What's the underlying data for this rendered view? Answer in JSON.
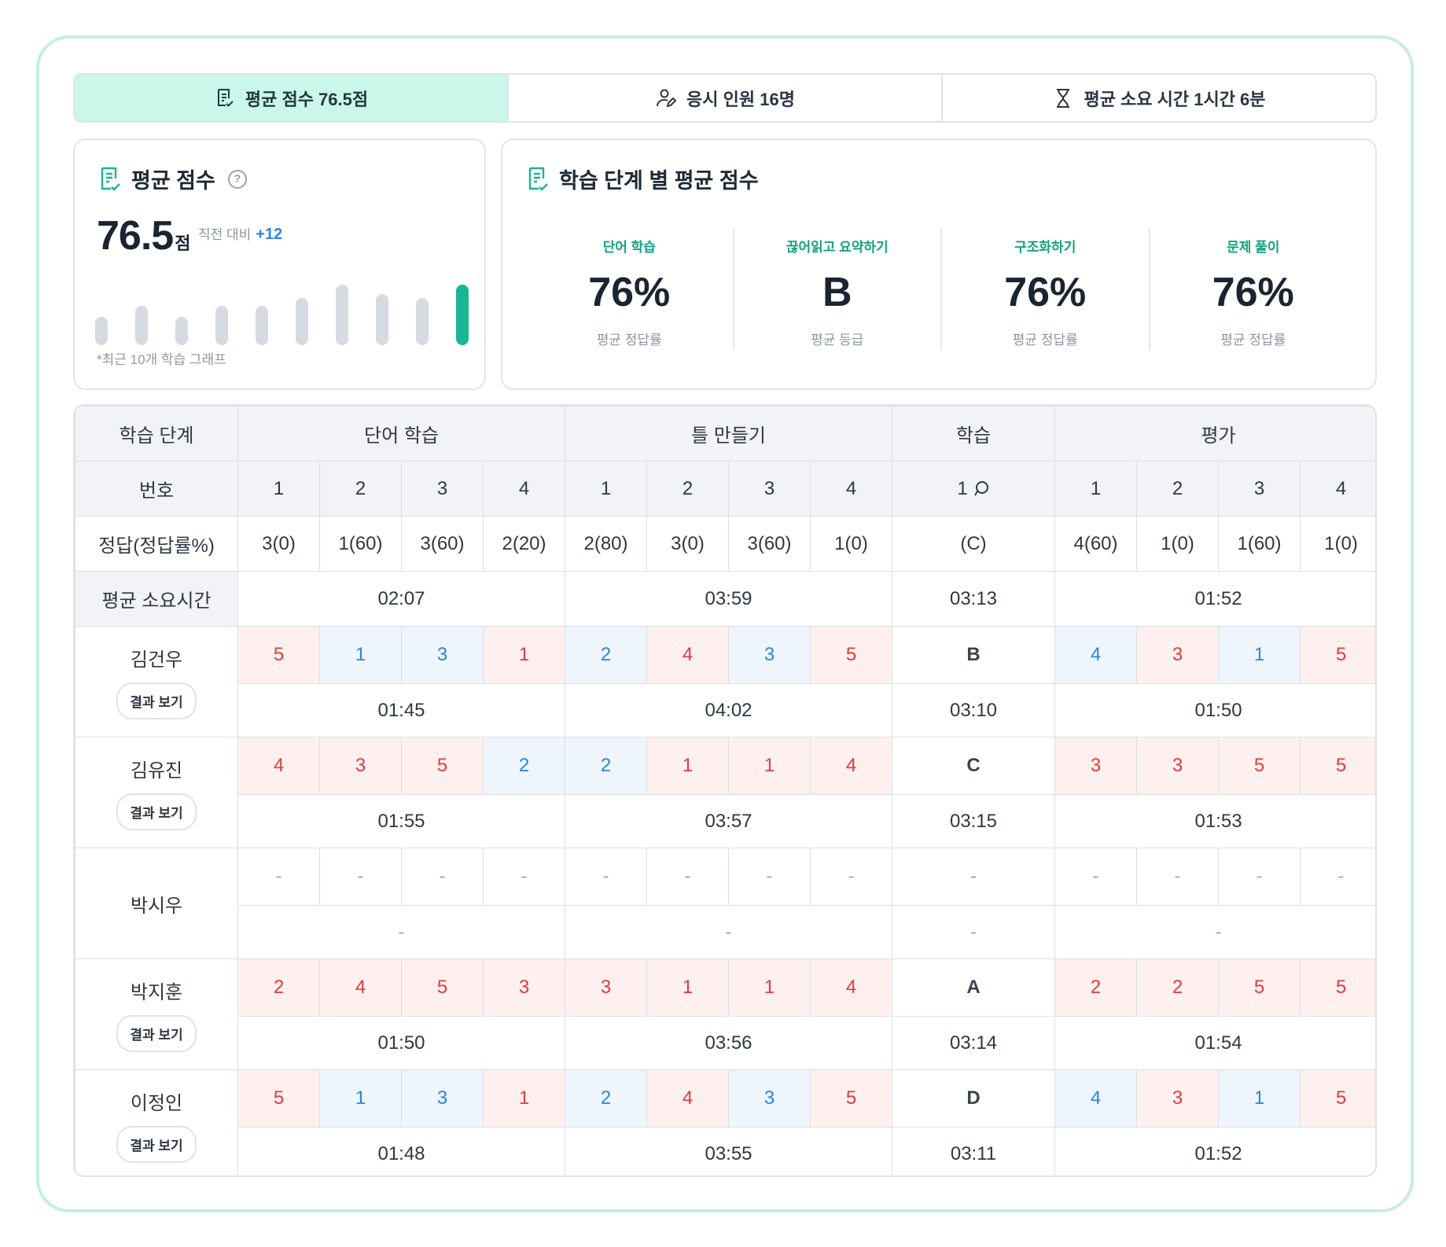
{
  "tabs": [
    {
      "label": "평균 점수 76.5점",
      "icon": "document-check-icon"
    },
    {
      "label": "응시 인원 16명",
      "icon": "user-edit-icon"
    },
    {
      "label": "평균 소요 시간 1시간 6분",
      "icon": "hourglass-icon"
    }
  ],
  "avg_card": {
    "title": "평균 점수",
    "score": "76.5",
    "unit": "점",
    "compare_label": "직전 대비",
    "delta": "+12",
    "note": "*최근 10개 학습 그래프",
    "bar_levels": [
      0.38,
      0.52,
      0.38,
      0.52,
      0.52,
      0.62,
      0.8,
      0.68,
      0.62,
      0.8
    ]
  },
  "stage_card": {
    "title": "학습 단계 별 평균 점수",
    "stages": [
      {
        "name": "단어 학습",
        "value": "76%",
        "sub": "평균 정답률"
      },
      {
        "name": "끊어읽고 요약하기",
        "value": "B",
        "sub": "평균 등급"
      },
      {
        "name": "구조화하기",
        "value": "76%",
        "sub": "평균 정답률"
      },
      {
        "name": "문제 풀이",
        "value": "76%",
        "sub": "평균 정답률"
      }
    ]
  },
  "table": {
    "stage_label": "학습 단계",
    "number_label": "번호",
    "answer_label": "정답(정답률%)",
    "avg_time_label": "평균 소요시간",
    "result_button": "결과 보기",
    "groups": [
      "단어 학습",
      "틀 만들기",
      "학습",
      "평가"
    ],
    "numbers": [
      "1",
      "2",
      "3",
      "4",
      "1",
      "2",
      "3",
      "4",
      "1",
      "1",
      "2",
      "3",
      "4"
    ],
    "answers": [
      "3(0)",
      "1(60)",
      "3(60)",
      "2(20)",
      "2(80)",
      "3(0)",
      "3(60)",
      "1(0)",
      "(C)",
      "4(60)",
      "1(0)",
      "1(60)",
      "1(0)"
    ],
    "avg_times": [
      "02:07",
      "03:59",
      "03:13",
      "01:52"
    ],
    "students": [
      {
        "name": "김건우",
        "has_result": true,
        "answers": [
          "5",
          "1",
          "3",
          "1",
          "2",
          "4",
          "3",
          "5",
          "B",
          "4",
          "3",
          "1",
          "5"
        ],
        "marks": [
          "red",
          "blue",
          "blue",
          "red",
          "blue",
          "red",
          "blue",
          "red",
          "grade",
          "blue",
          "red",
          "blue",
          "red"
        ],
        "times": [
          "01:45",
          "04:02",
          "03:10",
          "01:50"
        ]
      },
      {
        "name": "김유진",
        "has_result": true,
        "answers": [
          "4",
          "3",
          "5",
          "2",
          "2",
          "1",
          "1",
          "4",
          "C",
          "3",
          "3",
          "5",
          "5"
        ],
        "marks": [
          "red",
          "red",
          "red",
          "blue",
          "blue",
          "red",
          "red",
          "red",
          "grade",
          "red",
          "red",
          "red",
          "red"
        ],
        "times": [
          "01:55",
          "03:57",
          "03:15",
          "01:53"
        ]
      },
      {
        "name": "박시우",
        "has_result": false,
        "answers": [
          "-",
          "-",
          "-",
          "-",
          "-",
          "-",
          "-",
          "-",
          "-",
          "-",
          "-",
          "-",
          "-"
        ],
        "marks": [
          "empty",
          "empty",
          "empty",
          "empty",
          "empty",
          "empty",
          "empty",
          "empty",
          "empty",
          "empty",
          "empty",
          "empty",
          "empty"
        ],
        "times": [
          "-",
          "-",
          "-",
          "-"
        ]
      },
      {
        "name": "박지훈",
        "has_result": true,
        "answers": [
          "2",
          "4",
          "5",
          "3",
          "3",
          "1",
          "1",
          "4",
          "A",
          "2",
          "2",
          "5",
          "5"
        ],
        "marks": [
          "red",
          "red",
          "red",
          "red",
          "red",
          "red",
          "red",
          "red",
          "grade",
          "red",
          "red",
          "red",
          "red"
        ],
        "times": [
          "01:50",
          "03:56",
          "03:14",
          "01:54"
        ]
      },
      {
        "name": "이정인",
        "has_result": true,
        "answers": [
          "5",
          "1",
          "3",
          "1",
          "2",
          "4",
          "3",
          "5",
          "D",
          "4",
          "3",
          "1",
          "5"
        ],
        "marks": [
          "red",
          "blue",
          "blue",
          "red",
          "blue",
          "red",
          "blue",
          "red",
          "grade",
          "blue",
          "red",
          "blue",
          "red"
        ],
        "times": [
          "01:48",
          "03:55",
          "03:11",
          "01:52"
        ]
      }
    ]
  },
  "colors": {
    "accent": "#1bb495",
    "active_tab_bg": "#cbf7ea",
    "wrong_bg": "#fff0f0",
    "wrong_text": "#e23b3b",
    "right_bg": "#eef5fd",
    "right_text": "#2a86dd",
    "delta": "#2f86e6"
  }
}
